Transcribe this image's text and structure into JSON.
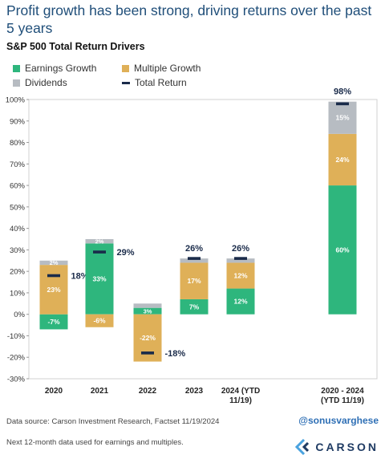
{
  "header": {
    "headline": "Profit growth has been strong, driving returns over the past 5 years"
  },
  "chart_data": {
    "type": "bar",
    "stacked": true,
    "title": "S&P 500 Total Return Drivers",
    "categories": [
      "2020",
      "2021",
      "2022",
      "2023",
      "2024 (YTD 11/19)",
      "2020 - 2024 (YTD 11/19)"
    ],
    "category_lines": [
      [
        "2020"
      ],
      [
        "2021"
      ],
      [
        "2022"
      ],
      [
        "2023"
      ],
      [
        "2024 (YTD",
        "11/19)"
      ],
      [
        "2020 - 2024",
        "(YTD 11/19)"
      ]
    ],
    "series": [
      {
        "name": "Earnings Growth",
        "color": "#2eb67d",
        "values": [
          -7,
          33,
          3,
          7,
          12,
          60
        ],
        "labels": [
          "-7%",
          "33%",
          "3%",
          "7%",
          "12%",
          "60%"
        ]
      },
      {
        "name": "Multiple Growth",
        "color": "#dfb058",
        "values": [
          23,
          -6,
          -22,
          17,
          12,
          24
        ],
        "labels": [
          "23%",
          "-6%",
          "-22%",
          "17%",
          "12%",
          "24%"
        ]
      },
      {
        "name": "Dividends",
        "color": "#b7bcc2",
        "values": [
          2,
          2,
          2,
          2,
          2,
          15
        ],
        "labels": [
          "2%",
          "2%",
          "",
          "",
          "",
          "15%"
        ]
      }
    ],
    "total_return": {
      "name": "Total Return",
      "color": "#1a2b4a",
      "values": [
        18,
        29,
        -18,
        26,
        26,
        98
      ],
      "labels": [
        "18%",
        "29%",
        "-18%",
        "26%",
        "26%",
        "98%"
      ]
    },
    "ylim": [
      -30,
      100
    ],
    "yticks": [
      -30,
      -20,
      -10,
      0,
      10,
      20,
      30,
      40,
      50,
      60,
      70,
      80,
      90,
      100
    ],
    "ytick_labels": [
      "-30%",
      "-20%",
      "-10%",
      "0%",
      "10%",
      "20%",
      "30%",
      "40%",
      "50%",
      "60%",
      "70%",
      "80%",
      "90%",
      "100%"
    ],
    "grid": false,
    "legend_position": "top-left"
  },
  "footer": {
    "source": "Data source: Carson Investment Research, Factset  11/19/2024",
    "note": "Next 12-month data used for earnings and multiples.",
    "handle": "@sonusvarghese",
    "brand": "CARSON"
  }
}
